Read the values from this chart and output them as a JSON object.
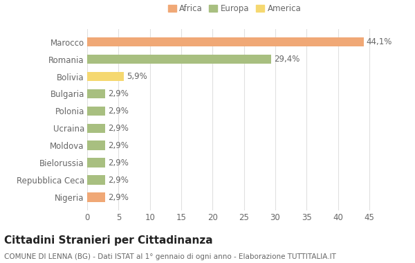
{
  "categories": [
    "Nigeria",
    "Repubblica Ceca",
    "Bielorussia",
    "Moldova",
    "Ucraina",
    "Polonia",
    "Bulgaria",
    "Bolivia",
    "Romania",
    "Marocco"
  ],
  "values": [
    2.9,
    2.9,
    2.9,
    2.9,
    2.9,
    2.9,
    2.9,
    5.9,
    29.4,
    44.1
  ],
  "labels": [
    "2,9%",
    "2,9%",
    "2,9%",
    "2,9%",
    "2,9%",
    "2,9%",
    "2,9%",
    "5,9%",
    "29,4%",
    "44,1%"
  ],
  "colors": [
    "#F0A876",
    "#A8BF80",
    "#A8BF80",
    "#A8BF80",
    "#A8BF80",
    "#A8BF80",
    "#A8BF80",
    "#F5D870",
    "#A8BF80",
    "#F0A876"
  ],
  "legend": [
    {
      "label": "Africa",
      "color": "#F0A876"
    },
    {
      "label": "Europa",
      "color": "#A8BF80"
    },
    {
      "label": "America",
      "color": "#F5D870"
    }
  ],
  "xlim": [
    0,
    47
  ],
  "xticks": [
    0,
    5,
    10,
    15,
    20,
    25,
    30,
    35,
    40,
    45
  ],
  "title": "Cittadini Stranieri per Cittadinanza",
  "subtitle": "COMUNE DI LENNA (BG) - Dati ISTAT al 1° gennaio di ogni anno - Elaborazione TUTTITALIA.IT",
  "background_color": "#ffffff",
  "grid_color": "#e0e0e0",
  "bar_height": 0.55,
  "label_fontsize": 8.5,
  "tick_fontsize": 8.5,
  "title_fontsize": 11,
  "subtitle_fontsize": 7.5,
  "text_color": "#666666"
}
